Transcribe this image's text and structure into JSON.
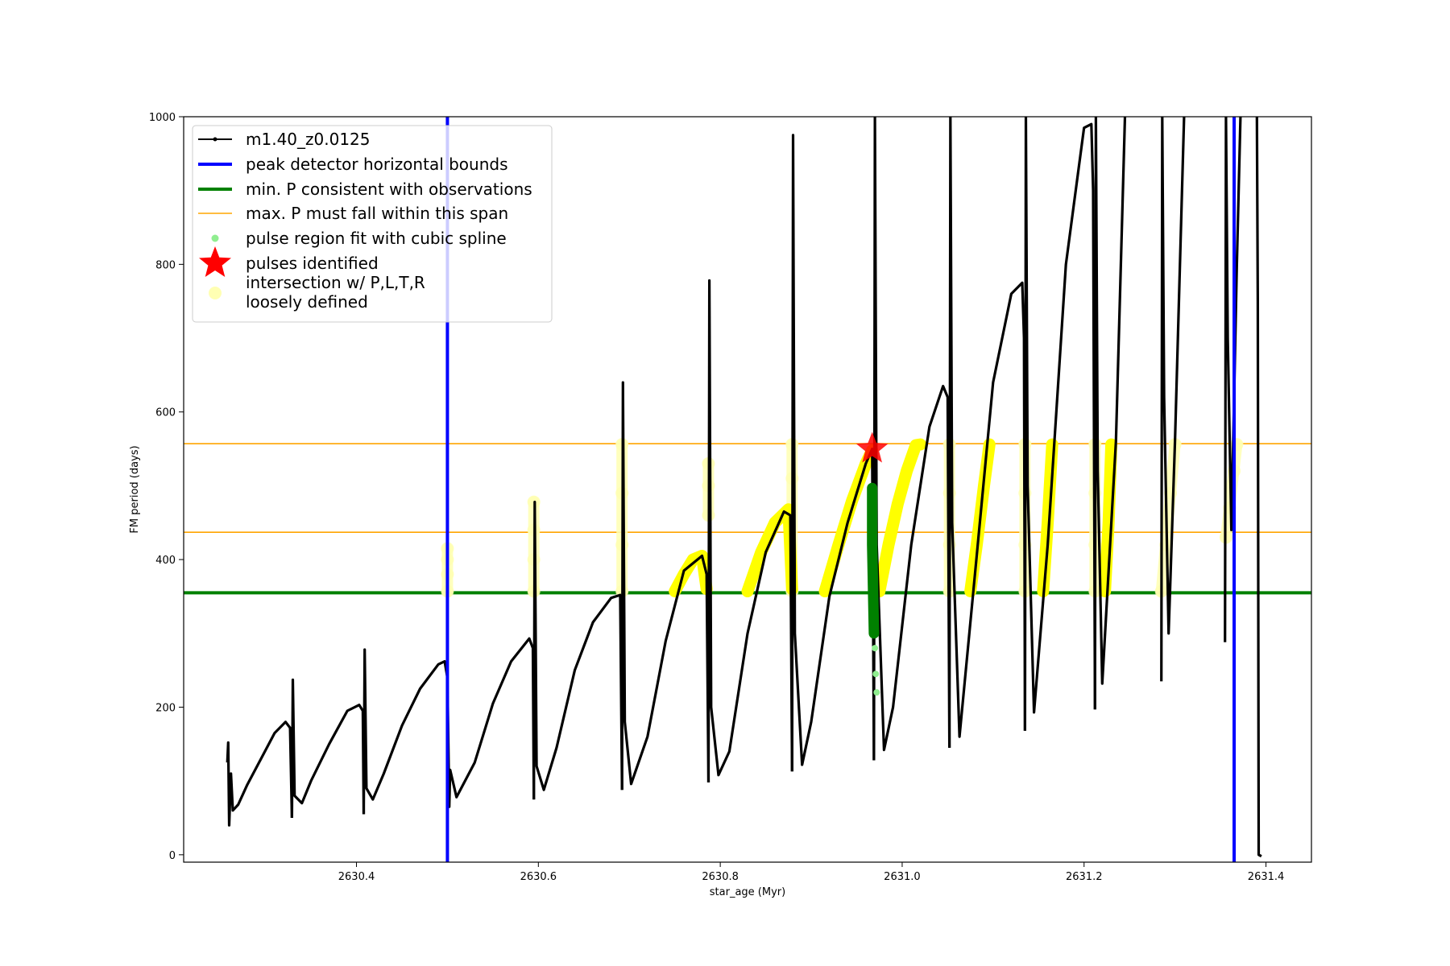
{
  "chart_data": {
    "type": "line",
    "title": "",
    "xlabel": "star_age (Myr)",
    "ylabel": "FM period (days)",
    "xlim": [
      2630.21,
      2631.45
    ],
    "ylim": [
      -10,
      1000
    ],
    "xticks": [
      2630.4,
      2630.6,
      2630.8,
      2631.0,
      2631.2,
      2631.4
    ],
    "xtick_labels": [
      "2630.4",
      "2630.6",
      "2630.8",
      "2631.0",
      "2631.2",
      "2631.4"
    ],
    "yticks": [
      0,
      200,
      400,
      600,
      800,
      1000
    ],
    "ytick_labels": [
      "0",
      "200",
      "400",
      "600",
      "800",
      "1000"
    ],
    "grid": false,
    "legend_position": "top-left",
    "legend": [
      {
        "label": "m1.40_z0.0125",
        "marker": "line-dot",
        "color": "#000000"
      },
      {
        "label": "peak detector horizontal bounds",
        "marker": "line",
        "color": "#0000ff"
      },
      {
        "label": "min. P consistent with observations",
        "marker": "line",
        "color": "#008000"
      },
      {
        "label": "max. P must fall within this span",
        "marker": "thin-line",
        "color": "#ffa500"
      },
      {
        "label": "pulse region fit with cubic spline",
        "marker": "dot",
        "color": "#90ee90"
      },
      {
        "label": "pulses identified",
        "marker": "star",
        "color": "#ff0000"
      },
      {
        "label": "intersection w/ P,L,T,R\nloosely defined",
        "marker": "circle",
        "color": "#ffffb3"
      }
    ],
    "colors": {
      "track": "#000000",
      "bounds": "#0000ff",
      "min_p": "#008000",
      "max_p": "#ffa500",
      "spline": "#90ee90",
      "star": "#ff0000",
      "intersection": "#ffff00",
      "intersection_loose": "#ffffb3",
      "spline_fit": "#008000"
    },
    "vlines": [
      2630.5,
      2631.365
    ],
    "min_p": 355,
    "max_p_span": [
      437,
      557
    ],
    "pulses_identified": [
      {
        "x": 2630.967,
        "y": 550
      }
    ],
    "series": [
      {
        "name": "m1.40_z0.0125",
        "segments": [
          [
            [
              2630.258,
              125
            ],
            [
              2630.259,
              152
            ],
            [
              2630.26,
              40
            ],
            [
              2630.262,
              110
            ],
            [
              2630.264,
              60
            ],
            [
              2630.27,
              68
            ],
            [
              2630.28,
              95
            ],
            [
              2630.295,
              130
            ],
            [
              2630.31,
              165
            ],
            [
              2630.322,
              180
            ],
            [
              2630.327,
              172
            ],
            [
              2630.329,
              50
            ]
          ],
          [
            [
              2630.329,
              50
            ],
            [
              2630.33,
              237
            ],
            [
              2630.332,
              80
            ],
            [
              2630.34,
              70
            ],
            [
              2630.35,
              100
            ],
            [
              2630.37,
              150
            ],
            [
              2630.39,
              195
            ],
            [
              2630.403,
              203
            ],
            [
              2630.407,
              195
            ],
            [
              2630.408,
              55
            ]
          ],
          [
            [
              2630.408,
              55
            ],
            [
              2630.409,
              278
            ],
            [
              2630.411,
              90
            ],
            [
              2630.418,
              75
            ],
            [
              2630.43,
              110
            ],
            [
              2630.45,
              175
            ],
            [
              2630.47,
              225
            ],
            [
              2630.49,
              258
            ],
            [
              2630.497,
              262
            ],
            [
              2630.5,
              240
            ]
          ],
          [
            [
              2630.5,
              240
            ],
            [
              2630.502,
              65
            ],
            [
              2630.503,
              115
            ],
            [
              2630.51,
              78
            ],
            [
              2630.53,
              125
            ],
            [
              2630.55,
              205
            ],
            [
              2630.57,
              262
            ],
            [
              2630.59,
              293
            ],
            [
              2630.594,
              280
            ],
            [
              2630.595,
              75
            ]
          ],
          [
            [
              2630.595,
              75
            ],
            [
              2630.596,
              478
            ],
            [
              2630.598,
              120
            ],
            [
              2630.606,
              88
            ],
            [
              2630.62,
              145
            ],
            [
              2630.64,
              250
            ],
            [
              2630.66,
              315
            ],
            [
              2630.68,
              348
            ],
            [
              2630.69,
              352
            ],
            [
              2630.692,
              88
            ]
          ],
          [
            [
              2630.692,
              88
            ],
            [
              2630.693,
              640
            ],
            [
              2630.695,
              180
            ],
            [
              2630.702,
              96
            ],
            [
              2630.72,
              160
            ],
            [
              2630.74,
              290
            ],
            [
              2630.76,
              385
            ],
            [
              2630.78,
              405
            ],
            [
              2630.785,
              380
            ],
            [
              2630.787,
              98
            ]
          ],
          [
            [
              2630.787,
              98
            ],
            [
              2630.788,
              778
            ],
            [
              2630.79,
              200
            ],
            [
              2630.798,
              108
            ],
            [
              2630.81,
              140
            ],
            [
              2630.83,
              300
            ],
            [
              2630.85,
              410
            ],
            [
              2630.87,
              465
            ],
            [
              2630.877,
              460
            ],
            [
              2630.879,
              113
            ]
          ],
          [
            [
              2630.879,
              113
            ],
            [
              2630.88,
              975
            ],
            [
              2630.882,
              300
            ],
            [
              2630.89,
              122
            ],
            [
              2630.9,
              180
            ],
            [
              2630.92,
              350
            ],
            [
              2630.94,
              450
            ],
            [
              2630.96,
              530
            ],
            [
              2630.967,
              550
            ],
            [
              2630.969,
              128
            ]
          ],
          [
            [
              2630.969,
              128
            ],
            [
              2630.97,
              1000
            ],
            [
              2630.972,
              420
            ],
            [
              2630.98,
              142
            ],
            [
              2630.99,
              200
            ],
            [
              2631.01,
              420
            ],
            [
              2631.03,
              580
            ],
            [
              2631.045,
              635
            ],
            [
              2631.05,
              620
            ],
            [
              2631.052,
              145
            ]
          ],
          [
            [
              2631.052,
              145
            ],
            [
              2631.053,
              1000
            ],
            [
              2631.055,
              450
            ],
            [
              2631.063,
              160
            ],
            [
              2631.08,
              380
            ],
            [
              2631.1,
              640
            ],
            [
              2631.12,
              760
            ],
            [
              2631.132,
              775
            ],
            [
              2631.134,
              700
            ],
            [
              2631.135,
              168
            ]
          ],
          [
            [
              2631.135,
              168
            ],
            [
              2631.136,
              1000
            ],
            [
              2631.138,
              500
            ],
            [
              2631.145,
              193
            ],
            [
              2631.16,
              420
            ],
            [
              2631.18,
              800
            ],
            [
              2631.2,
              985
            ],
            [
              2631.208,
              990
            ],
            [
              2631.21,
              900
            ],
            [
              2631.212,
              197
            ]
          ],
          [
            [
              2631.212,
              197
            ],
            [
              2631.213,
              1000
            ],
            [
              2631.215,
              520
            ],
            [
              2631.22,
              232
            ],
            [
              2631.235,
              560
            ],
            [
              2631.245,
              1000
            ]
          ],
          [
            [
              2631.285,
              235
            ],
            [
              2631.286,
              1000
            ],
            [
              2631.288,
              620
            ],
            [
              2631.293,
              300
            ],
            [
              2631.3,
              560
            ],
            [
              2631.31,
              1000
            ]
          ],
          [
            [
              2631.355,
              288
            ],
            [
              2631.356,
              1000
            ],
            [
              2631.358,
              700
            ],
            [
              2631.362,
              440
            ],
            [
              2631.368,
              800
            ],
            [
              2631.372,
              1000
            ]
          ],
          [
            [
              2631.39,
              1000
            ],
            [
              2631.391,
              750
            ],
            [
              2631.392,
              0
            ],
            [
              2631.395,
              -2
            ]
          ]
        ]
      }
    ],
    "spline_fit": {
      "x": [
        2630.967,
        2630.967,
        2630.968,
        2630.969
      ],
      "y": [
        497,
        420,
        360,
        300
      ]
    },
    "spline_region": {
      "x": [
        2630.968,
        2630.969,
        2630.97,
        2630.971,
        2630.972
      ],
      "y": [
        360,
        320,
        280,
        245,
        220
      ]
    },
    "intersections_strong": [
      {
        "x": [
          2630.75,
          2630.76,
          2630.77,
          2630.78,
          2630.785
        ],
        "y": [
          357,
          380,
          400,
          405,
          360
        ]
      },
      {
        "x": [
          2630.83,
          2630.845,
          2630.86,
          2630.875,
          2630.879
        ],
        "y": [
          357,
          410,
          450,
          468,
          360
        ]
      },
      {
        "x": [
          2630.915,
          2630.93,
          2630.945,
          2630.96,
          2630.967
        ],
        "y": [
          357,
          420,
          480,
          530,
          548
        ]
      },
      {
        "x": [
          2630.975,
          2630.985,
          2630.995,
          2631.005,
          2631.015,
          2631.02
        ],
        "y": [
          357,
          420,
          475,
          520,
          555,
          556
        ]
      },
      {
        "x": [
          2631.075,
          2631.082,
          2631.09,
          2631.096
        ],
        "y": [
          357,
          420,
          500,
          556
        ]
      },
      {
        "x": [
          2631.155,
          2631.16,
          2631.165
        ],
        "y": [
          357,
          450,
          556
        ]
      },
      {
        "x": [
          2631.223,
          2631.227,
          2631.23
        ],
        "y": [
          357,
          450,
          556
        ]
      }
    ],
    "intersections_loose": [
      {
        "x": [
          2630.5,
          2630.5,
          2630.5,
          2630.5
        ],
        "y": [
          357,
          380,
          400,
          415
        ]
      },
      {
        "x": [
          2630.595,
          2630.595,
          2630.595,
          2630.595
        ],
        "y": [
          357,
          400,
          440,
          478
        ]
      },
      {
        "x": [
          2630.692,
          2630.692,
          2630.692,
          2630.692
        ],
        "y": [
          357,
          420,
          490,
          556
        ]
      },
      {
        "x": [
          2630.787,
          2630.787,
          2630.787
        ],
        "y": [
          460,
          500,
          530
        ]
      },
      {
        "x": [
          2630.879,
          2630.879,
          2630.879
        ],
        "y": [
          357,
          510,
          556
        ]
      },
      {
        "x": [
          2631.052,
          2631.052,
          2631.052,
          2631.052
        ],
        "y": [
          357,
          420,
          490,
          556
        ]
      },
      {
        "x": [
          2631.135,
          2631.135,
          2631.135,
          2631.135
        ],
        "y": [
          357,
          420,
          490,
          556
        ]
      },
      {
        "x": [
          2631.212,
          2631.212,
          2631.212,
          2631.212
        ],
        "y": [
          357,
          420,
          490,
          556
        ]
      },
      {
        "x": [
          2631.285,
          2631.29,
          2631.295,
          2631.3
        ],
        "y": [
          357,
          420,
          490,
          556
        ]
      },
      {
        "x": [
          2631.356,
          2631.36,
          2631.365,
          2631.368
        ],
        "y": [
          430,
          470,
          520,
          556
        ]
      }
    ]
  }
}
